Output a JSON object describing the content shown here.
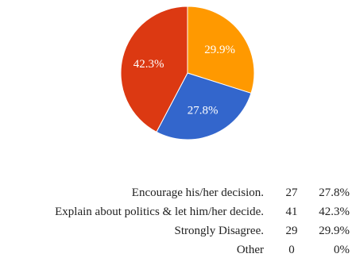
{
  "chart_data": {
    "type": "pie",
    "slices": [
      {
        "label": "Encourage his/her decision.",
        "count": 27,
        "percent": "27.8%",
        "value": 27.8,
        "color": "#3366CC"
      },
      {
        "label": "Explain about politics & let him/her decide.",
        "count": 41,
        "percent": "42.3%",
        "value": 42.3,
        "color": "#DC3912"
      },
      {
        "label": "Strongly Disagree.",
        "count": 29,
        "percent": "29.9%",
        "value": 29.9,
        "color": "#FF9900"
      },
      {
        "label": "Other",
        "count": 0,
        "percent": "0%",
        "value": 0,
        "color": "#109618"
      }
    ],
    "slice_order_clockwise_from_top": [
      "Strongly Disagree.",
      "Encourage his/her decision.",
      "Explain about politics & let him/her decide."
    ]
  },
  "legend": {
    "rows": [
      {
        "label": "Encourage his/her decision.",
        "count": "27",
        "percent": "27.8%"
      },
      {
        "label": "Explain about politics & let him/her decide.",
        "count": "41",
        "percent": "42.3%"
      },
      {
        "label": "Strongly Disagree.",
        "count": "29",
        "percent": "29.9%"
      },
      {
        "label": "Other",
        "count": "0",
        "percent": "0%"
      }
    ]
  }
}
